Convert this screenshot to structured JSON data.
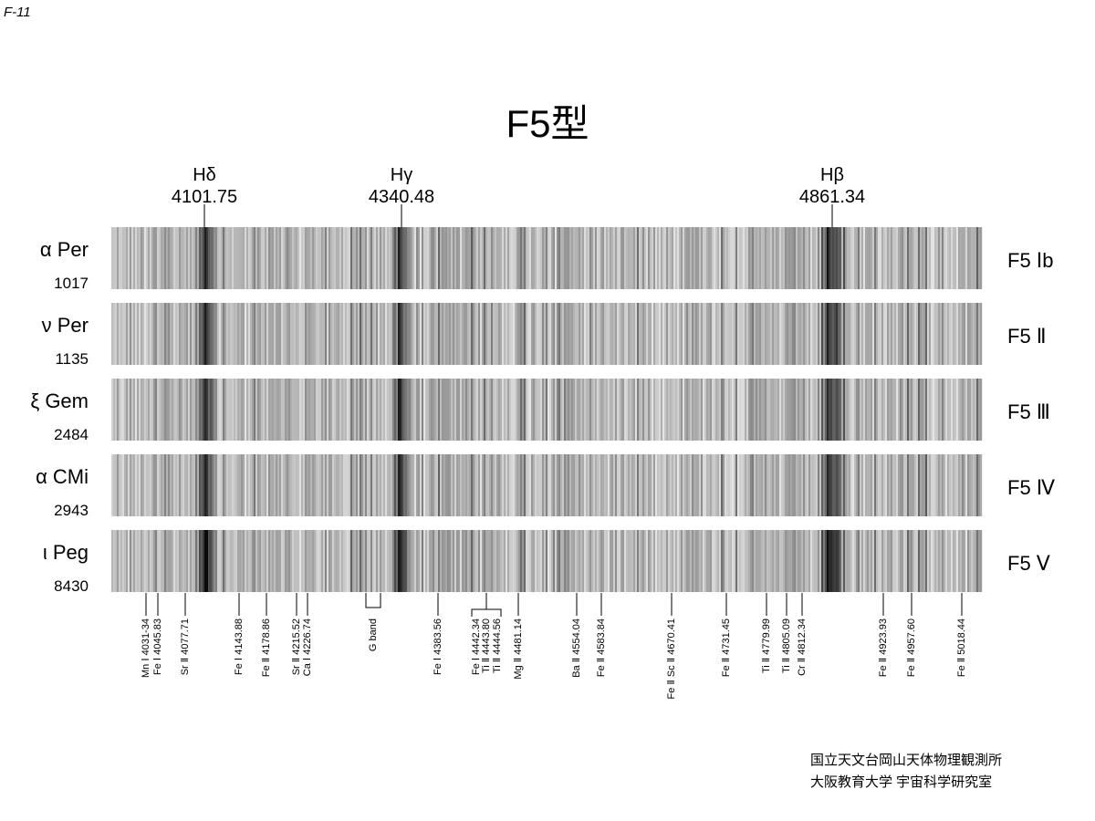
{
  "page_id": "F-11",
  "title": "F5型",
  "markers": [
    {
      "name": "Hδ",
      "wavelength": "4101.75"
    },
    {
      "name": "Hγ",
      "wavelength": "4340.48"
    },
    {
      "name": "Hβ",
      "wavelength": "4861.34"
    }
  ],
  "spectra": [
    {
      "star": "α Per",
      "number": "1017",
      "class": "F5 Ⅰb"
    },
    {
      "star": "ν Per",
      "number": "1135",
      "class": "F5 Ⅱ"
    },
    {
      "star": "ξ Gem",
      "number": "2484",
      "class": "F5 Ⅲ"
    },
    {
      "star": "α CMi",
      "number": "2943",
      "class": "F5 Ⅳ"
    },
    {
      "star": "ι Peg",
      "number": "8430",
      "class": "F5 Ⅴ"
    }
  ],
  "lines": [
    "Mn Ⅰ 4031-34",
    "Fe Ⅰ 4045.83",
    "Sr Ⅱ 4077.71",
    "Fe Ⅰ 4143.88",
    "Fe Ⅱ 4178.86",
    "Sr Ⅱ 4215.52",
    "Ca Ⅰ 4226.74",
    "G band",
    "Fe Ⅰ 4383.56",
    "Fe Ⅰ 4442.34",
    "Ti Ⅱ 4443.80",
    "Ti Ⅱ 4444.56",
    "Mg Ⅱ 4481.14",
    "Ba Ⅱ 4554.04",
    "Fe Ⅱ 4583.84",
    "Fe Ⅱ Sc Ⅱ 4670.41",
    "Fe Ⅱ 4731.45",
    "Ti Ⅱ 4779.99",
    "Ti Ⅱ 4805.09",
    "Cr Ⅱ 4812.34",
    "Fe Ⅱ 4923.93",
    "Fe Ⅱ 4957.60",
    "Fe Ⅱ 5018.44"
  ],
  "credits": [
    "国立天文台岡山天体物理観測所",
    "大阪教育大学 宇宙科学研究室"
  ]
}
